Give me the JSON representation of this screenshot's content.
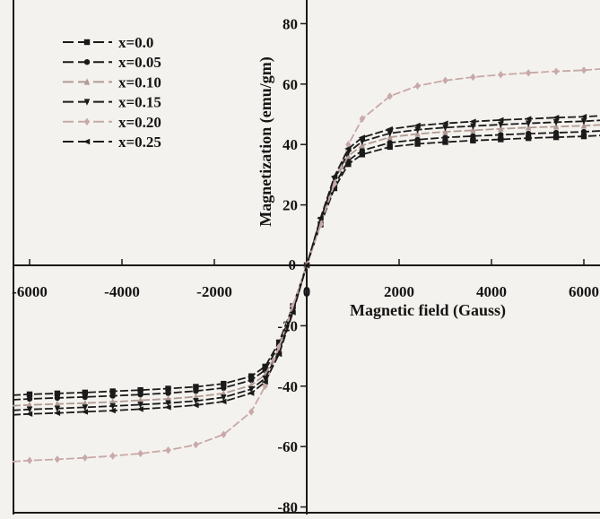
{
  "chart_data": {
    "type": "line",
    "title": "",
    "xlabel": "Magnetic field (Gauss)",
    "ylabel": "Magnetization (emu/gm)",
    "xlim": [
      -6600,
      6600
    ],
    "ylim": [
      -82,
      84
    ],
    "xticks": [
      -6000,
      -4000,
      -2000,
      0,
      2000,
      4000,
      6000
    ],
    "xtick_labels": [
      "-6000",
      "-4000",
      "-2000",
      "0",
      "2000",
      "4000",
      "6000"
    ],
    "yticks": [
      -80,
      -60,
      -40,
      -20,
      0,
      20,
      40,
      60,
      80
    ],
    "ytick_labels": [
      "-80",
      "-60",
      "-40",
      "-20",
      "0",
      "20",
      "40",
      "60",
      "80"
    ],
    "grid": false,
    "legend_position": "top-left",
    "x": [
      -6600,
      -6000,
      -5400,
      -4800,
      -4200,
      -3600,
      -3000,
      -2400,
      -1800,
      -1200,
      -900,
      -600,
      -300,
      0,
      300,
      600,
      900,
      1200,
      1800,
      2400,
      3000,
      3600,
      4200,
      4800,
      5400,
      6000,
      6600
    ],
    "series": [
      {
        "name": "x=0.0",
        "marker": "square",
        "color": "#1a1a1a",
        "values": [
          -43.0,
          -42.7,
          -42.4,
          -42.1,
          -41.7,
          -41.3,
          -40.8,
          -40.2,
          -39.2,
          -36.7,
          -33.5,
          -25.5,
          -13.5,
          0,
          13.5,
          25.5,
          33.5,
          36.7,
          39.2,
          40.2,
          40.8,
          41.3,
          41.7,
          42.1,
          42.4,
          42.7,
          43.0
        ]
      },
      {
        "name": "x=0.05",
        "marker": "circle",
        "color": "#1a1a1a",
        "values": [
          -44.5,
          -44.2,
          -43.9,
          -43.6,
          -43.2,
          -42.8,
          -42.3,
          -41.6,
          -40.6,
          -38.0,
          -34.7,
          -26.4,
          -14.0,
          0,
          14.0,
          26.4,
          34.7,
          38.0,
          40.6,
          41.6,
          42.3,
          42.8,
          43.2,
          43.6,
          43.9,
          44.2,
          44.5
        ]
      },
      {
        "name": "x=0.10",
        "marker": "triangle-up",
        "color": "#b09a94",
        "values": [
          -46.5,
          -46.2,
          -45.9,
          -45.6,
          -45.2,
          -44.7,
          -44.2,
          -43.5,
          -42.4,
          -39.7,
          -36.2,
          -27.6,
          -14.6,
          0,
          14.6,
          27.6,
          36.2,
          39.7,
          42.4,
          43.5,
          44.2,
          44.7,
          45.2,
          45.6,
          45.9,
          46.2,
          46.5
        ]
      },
      {
        "name": "x=0.15",
        "marker": "triangle-down",
        "color": "#1a1a1a",
        "values": [
          -48.0,
          -47.7,
          -47.4,
          -47.0,
          -46.6,
          -46.1,
          -45.6,
          -44.9,
          -43.7,
          -41.0,
          -37.4,
          -28.5,
          -15.1,
          0,
          15.1,
          28.5,
          37.4,
          41.0,
          43.7,
          44.9,
          45.6,
          46.1,
          46.6,
          47.0,
          47.4,
          47.7,
          48.0
        ]
      },
      {
        "name": "x=0.20",
        "marker": "diamond",
        "color": "#c8a8a8",
        "values": [
          -65.0,
          -64.6,
          -64.2,
          -63.7,
          -63.1,
          -62.3,
          -61.2,
          -59.4,
          -56.0,
          -48.5,
          -40.0,
          -27.0,
          -13.5,
          0,
          13.5,
          27.0,
          40.0,
          48.5,
          56.0,
          59.4,
          61.2,
          62.3,
          63.1,
          63.7,
          64.2,
          64.6,
          65.0
        ]
      },
      {
        "name": "x=0.25",
        "marker": "triangle-left",
        "color": "#1a1a1a",
        "values": [
          -49.5,
          -49.2,
          -48.9,
          -48.5,
          -48.1,
          -47.6,
          -47.0,
          -46.3,
          -45.1,
          -42.3,
          -38.6,
          -29.4,
          -15.6,
          0,
          15.6,
          29.4,
          38.6,
          42.3,
          45.1,
          46.3,
          47.0,
          47.6,
          48.1,
          48.5,
          48.9,
          49.2,
          49.5
        ]
      }
    ]
  }
}
